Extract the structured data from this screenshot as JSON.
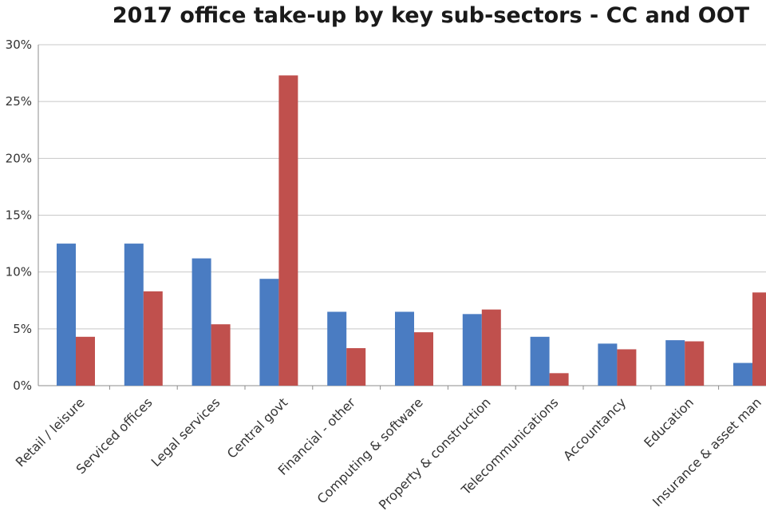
{
  "chart_data": {
    "type": "bar",
    "title": "2017 office take-up by key sub-sectors - CC and OOT",
    "categories": [
      "Retail / leisure",
      "Serviced offices",
      "Legal services",
      "Central govt",
      "Financial - other",
      "Computing & software",
      "Property & construction",
      "Telecommunications",
      "Accountancy",
      "Education",
      "Insurance & asset man"
    ],
    "series": [
      {
        "values": [
          12.5,
          12.5,
          11.2,
          9.4,
          6.5,
          6.5,
          6.3,
          4.3,
          3.7,
          4.0,
          2.0
        ],
        "color": "#4a7cc2"
      },
      {
        "values": [
          4.3,
          8.3,
          5.4,
          27.3,
          3.3,
          4.7,
          6.7,
          1.1,
          3.2,
          3.9,
          8.2
        ],
        "color": "#c0504d"
      }
    ],
    "ylim": [
      0,
      30
    ],
    "yticks": [
      "0%",
      "5%",
      "10%",
      "15%",
      "20%",
      "25%",
      "30%"
    ],
    "grid": true
  }
}
